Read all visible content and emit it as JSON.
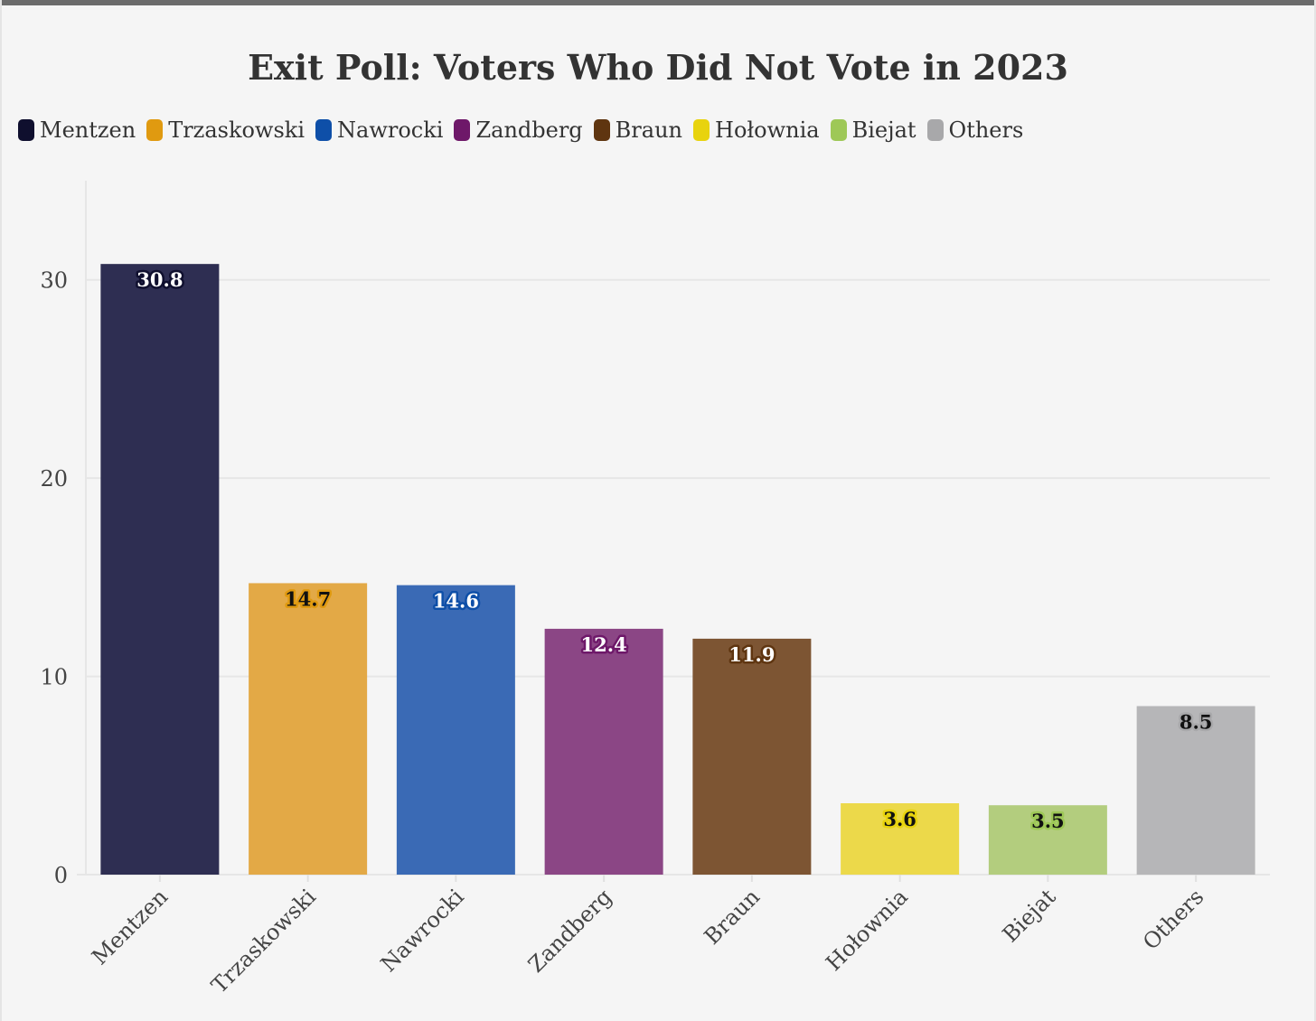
{
  "chart_data": {
    "type": "bar",
    "title": "Exit Poll: Voters Who Did Not Vote in 2023",
    "xlabel": "",
    "ylabel": "",
    "categories": [
      "Mentzen",
      "Trzaskowski",
      "Nawrocki",
      "Zandberg",
      "Braun",
      "Hołownia",
      "Biejat",
      "Others"
    ],
    "values": [
      30.8,
      14.7,
      14.6,
      12.4,
      11.9,
      3.6,
      3.5,
      8.5
    ],
    "value_labels": [
      "30.8",
      "14.7",
      "14.6",
      "12.4",
      "11.9",
      "3.6",
      "3.5",
      "8.5"
    ],
    "colors": [
      "#2e2e52",
      "#e3a946",
      "#3a6ab5",
      "#8b4685",
      "#7d5533",
      "#ecd94a",
      "#b3cd7e",
      "#b6b6b8"
    ],
    "legend_colors": [
      "#0f0f2e",
      "#e09a10",
      "#0e4fa8",
      "#6e1869",
      "#5f3510",
      "#e8d30e",
      "#9ec857",
      "#a8a8aa"
    ],
    "label_text_colors": [
      "#ffffff",
      "#111111",
      "#ffffff",
      "#ffffff",
      "#ffffff",
      "#111111",
      "#111111",
      "#111111"
    ],
    "legend": [
      "Mentzen",
      "Trzaskowski",
      "Nawrocki",
      "Zandberg",
      "Braun",
      "Hołownia",
      "Biejat",
      "Others"
    ],
    "legend_position": "top-left",
    "ylim": [
      0,
      35
    ],
    "yticks": [
      0,
      10,
      20,
      30
    ],
    "ytick_labels": [
      "0",
      "10",
      "20",
      "30"
    ],
    "grid": true
  }
}
